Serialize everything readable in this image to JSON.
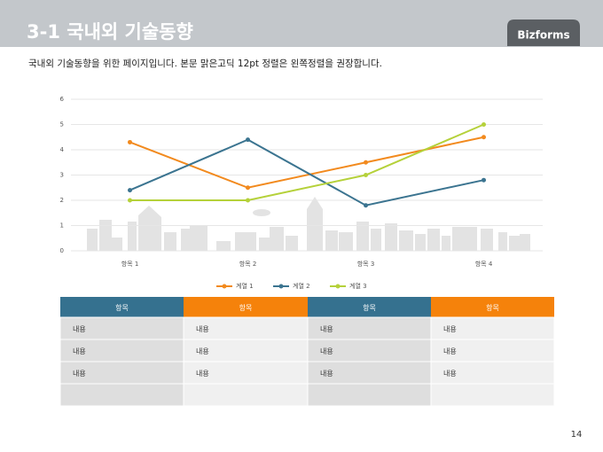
{
  "header": {
    "title": "3-1 국내외 기술동향",
    "brand": "Bizforms"
  },
  "subtitle": "국내외 기술동향을 위한 페이지입니다. 본문 맑은고딕 12pt 정렬은 왼쪽정렬을 권장합니다.",
  "chart_data": {
    "type": "line",
    "categories": [
      "항목 1",
      "항목 2",
      "항목 3",
      "항목 4"
    ],
    "series": [
      {
        "name": "계열 1",
        "color": "#f28a1e",
        "values": [
          4.3,
          2.5,
          3.5,
          4.5
        ]
      },
      {
        "name": "계열 2",
        "color": "#3b7490",
        "values": [
          2.4,
          4.4,
          1.8,
          2.8
        ]
      },
      {
        "name": "계열 3",
        "color": "#b5d13a",
        "values": [
          2,
          2,
          3,
          5
        ]
      }
    ],
    "ylim": [
      0,
      6
    ],
    "yticks": [
      0,
      1,
      2,
      3,
      4,
      5,
      6
    ],
    "grid": true,
    "legend": "bottom"
  },
  "table": {
    "header": [
      "항목",
      "항목",
      "항목",
      "항목"
    ],
    "header_colors": [
      "#35718f",
      "#f5820b",
      "#35718f",
      "#f5820b"
    ],
    "rows": [
      [
        "내용",
        "내용",
        "내용",
        "내용"
      ],
      [
        "내용",
        "내용",
        "내용",
        "내용"
      ],
      [
        "내용",
        "내용",
        "내용",
        "내용"
      ]
    ]
  },
  "page_number": "14"
}
